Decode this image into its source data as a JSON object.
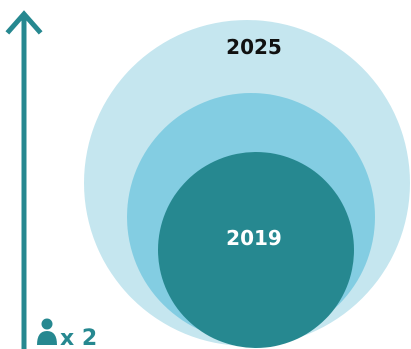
{
  "labels": {
    "outer_year": "2025",
    "inner_year": "2019",
    "multiplier": "x 2"
  },
  "icons": {
    "person": "person-icon",
    "arrow": "arrow-up-icon"
  },
  "colors": {
    "outer_circle": "#c5e6ef",
    "middle_circle": "#83cde2",
    "inner_circle": "#268890",
    "arrow": "#268890",
    "outer_text": "#111111",
    "inner_text": "#ffffff",
    "multiplier_text": "#268890"
  }
}
